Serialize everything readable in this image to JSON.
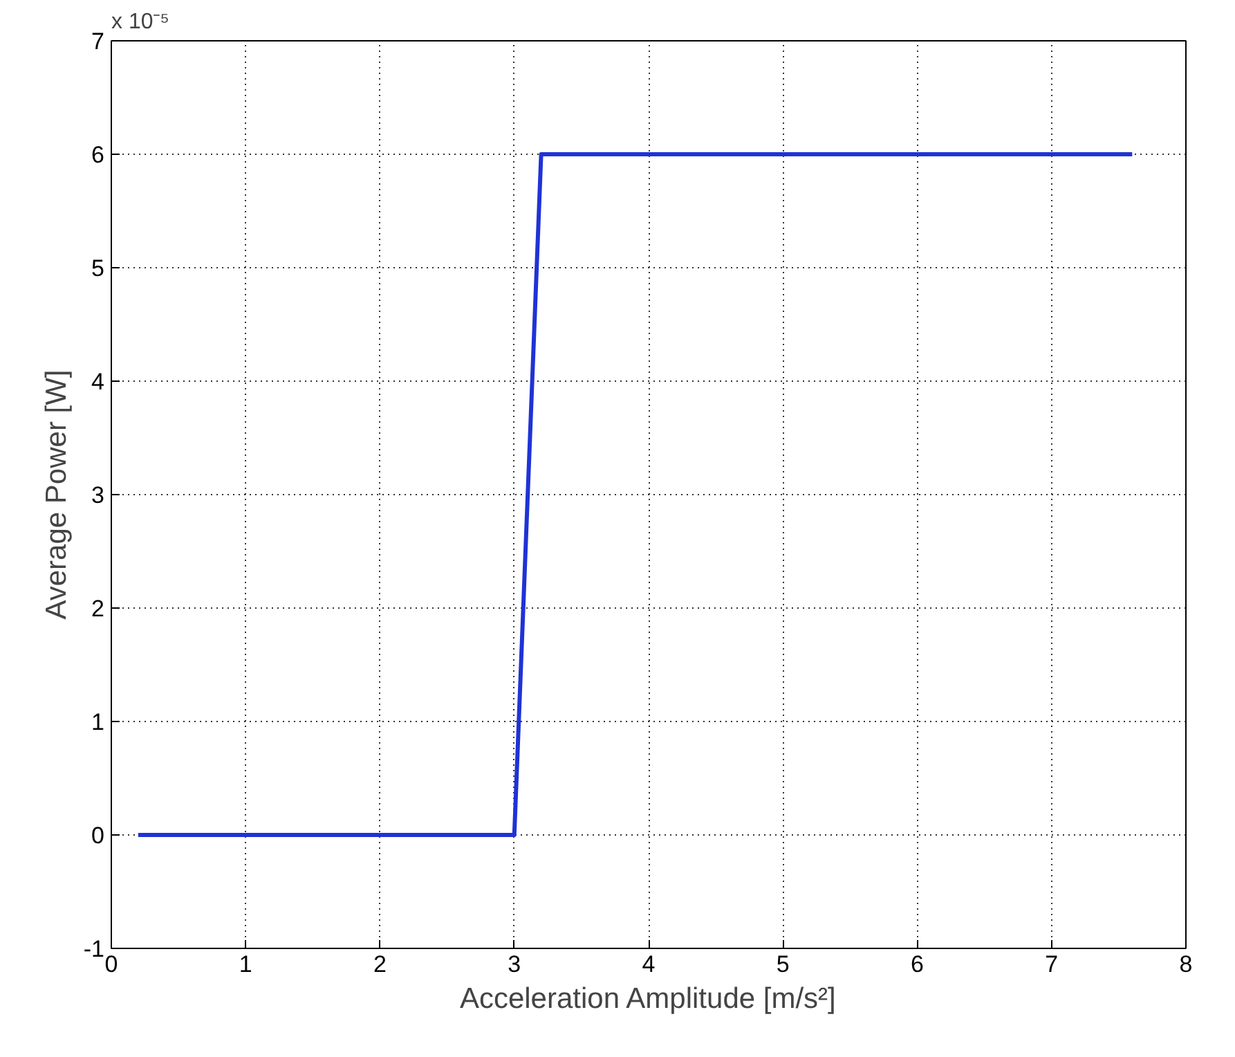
{
  "chart_data": {
    "type": "line",
    "xlabel": "Acceleration Amplitude [m/s²]",
    "ylabel": "Average Power [W]",
    "annotations": [
      "x 10⁻⁵"
    ],
    "x": [
      0.2,
      3.0,
      3.2,
      7.6
    ],
    "series": [
      {
        "color": "#1f33d6",
        "values": [
          0,
          0,
          6,
          6
        ]
      }
    ],
    "xlim": [
      0,
      8
    ],
    "xticks": [
      0,
      1,
      2,
      3,
      4,
      5,
      6,
      7,
      8
    ],
    "ylim": [
      -1,
      7
    ],
    "yticks": [
      -1,
      0,
      1,
      2,
      3,
      4,
      5,
      6,
      7
    ],
    "grid": true,
    "line_style": "solid"
  }
}
